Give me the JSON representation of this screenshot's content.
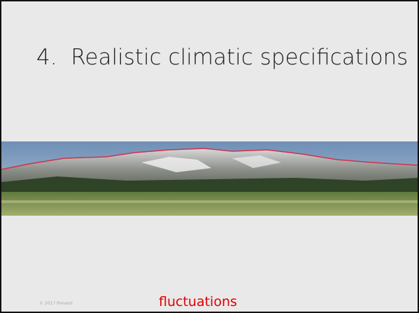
{
  "slide": {
    "title": "4.  Realistic climatic specifications",
    "footer": "© 2017 Prevent",
    "caption": "fluctuations"
  }
}
